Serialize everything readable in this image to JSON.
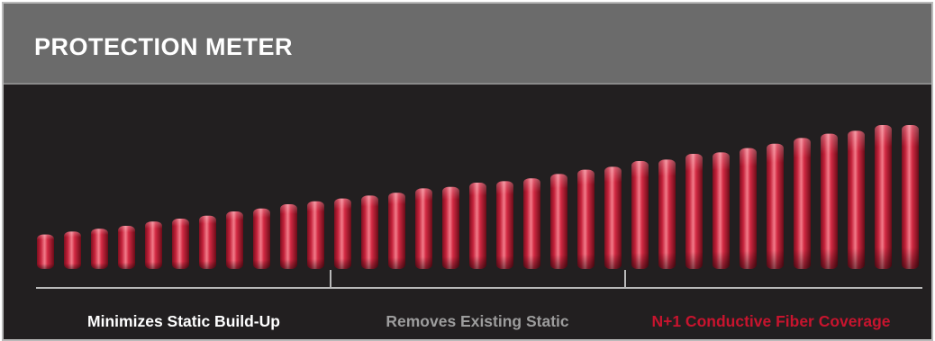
{
  "header": {
    "title": "PROTECTION METER"
  },
  "meter": {
    "bar_count": 33,
    "levels": [
      0.24,
      0.26,
      0.28,
      0.3,
      0.33,
      0.35,
      0.37,
      0.4,
      0.42,
      0.45,
      0.47,
      0.49,
      0.51,
      0.53,
      0.56,
      0.57,
      0.6,
      0.61,
      0.63,
      0.66,
      0.69,
      0.71,
      0.75,
      0.76,
      0.8,
      0.81,
      0.84,
      0.87,
      0.91,
      0.94,
      0.96,
      1.0,
      1.0
    ],
    "bar_color": "#c4213a",
    "highlight_color": "#f27c8a"
  },
  "scale": {
    "labels": [
      {
        "text": "Minimizes Static Build-Up",
        "color": "#ffffff"
      },
      {
        "text": "Removes Existing Static",
        "color": "#9d9d9d"
      },
      {
        "text": "N+1 Conductive Fiber Coverage",
        "color": "#c8142e"
      }
    ],
    "line_color": "#b9b9b9"
  }
}
